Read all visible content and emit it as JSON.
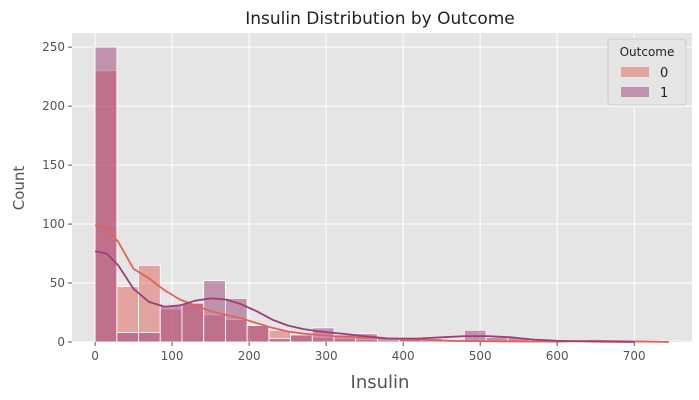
{
  "chart_data": {
    "type": "histogram",
    "title": "Insulin Distribution by Outcome",
    "xlabel": "Insulin",
    "ylabel": "Count",
    "xlim": [
      -30,
      775
    ],
    "ylim": [
      0,
      262
    ],
    "x_ticks": [
      0,
      100,
      200,
      300,
      400,
      500,
      600,
      700
    ],
    "y_ticks": [
      0,
      50,
      100,
      150,
      200,
      250
    ],
    "grid": true,
    "legend": {
      "title": "Outcome",
      "placement": "top-right"
    },
    "bin_edges": [
      0,
      28.2,
      56.4,
      84.6,
      112.8,
      141,
      169.2,
      197.4,
      225.6,
      253.8,
      282,
      310.2,
      338.4,
      366.6,
      394.8,
      423,
      451.2,
      479.4,
      507.6,
      535.8,
      564,
      592.2,
      620.4,
      648.6,
      676.8,
      705,
      733.2,
      761.4
    ],
    "series": [
      {
        "name": "0",
        "color": "#e2625b",
        "counts": [
          230,
          47,
          65,
          28,
          33,
          23,
          19,
          14,
          10,
          6,
          4,
          3,
          2,
          1,
          2,
          1,
          0,
          0,
          0,
          0,
          0,
          0,
          0,
          0,
          0,
          0,
          1
        ],
        "kde": [
          [
            0,
            99
          ],
          [
            15,
            97
          ],
          [
            30,
            85
          ],
          [
            50,
            62
          ],
          [
            70,
            54
          ],
          [
            90,
            44
          ],
          [
            110,
            36
          ],
          [
            130,
            31
          ],
          [
            150,
            26
          ],
          [
            170,
            23
          ],
          [
            190,
            20
          ],
          [
            210,
            16
          ],
          [
            230,
            12
          ],
          [
            250,
            9
          ],
          [
            270,
            7
          ],
          [
            290,
            6
          ],
          [
            310,
            5
          ],
          [
            340,
            4
          ],
          [
            380,
            3
          ],
          [
            420,
            2
          ],
          [
            460,
            1
          ],
          [
            520,
            0.5
          ],
          [
            600,
            0.3
          ],
          [
            650,
            1
          ],
          [
            700,
            0.5
          ],
          [
            745,
            0
          ]
        ]
      },
      {
        "name": "1",
        "color": "#9c3f78",
        "counts": [
          250,
          8,
          8,
          31,
          33,
          52,
          37,
          14,
          3,
          6,
          12,
          6,
          7,
          3,
          4,
          3,
          1,
          10,
          4,
          4,
          0,
          0,
          0,
          0,
          0,
          0,
          0
        ],
        "kde": [
          [
            0,
            77
          ],
          [
            15,
            75
          ],
          [
            30,
            65
          ],
          [
            50,
            45
          ],
          [
            70,
            34
          ],
          [
            90,
            30
          ],
          [
            110,
            31
          ],
          [
            130,
            35
          ],
          [
            150,
            37
          ],
          [
            170,
            36
          ],
          [
            190,
            32
          ],
          [
            210,
            26
          ],
          [
            230,
            19
          ],
          [
            250,
            14
          ],
          [
            270,
            11
          ],
          [
            290,
            9
          ],
          [
            320,
            7
          ],
          [
            350,
            5
          ],
          [
            380,
            3
          ],
          [
            420,
            3
          ],
          [
            450,
            4
          ],
          [
            480,
            5
          ],
          [
            510,
            5
          ],
          [
            540,
            4
          ],
          [
            570,
            2
          ],
          [
            600,
            1
          ],
          [
            650,
            0.3
          ],
          [
            700,
            0
          ]
        ]
      }
    ]
  }
}
